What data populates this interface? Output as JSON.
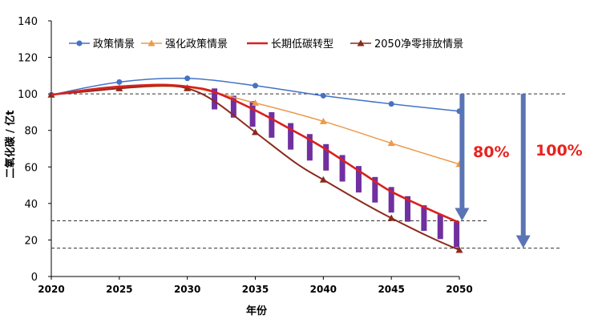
{
  "chart_data": {
    "type": "line",
    "xlabel": "年份",
    "ylabel": "二氧化碳 / 亿t",
    "xlim": [
      2020,
      2050
    ],
    "ylim": [
      0,
      140
    ],
    "x_ticks": [
      2020,
      2025,
      2030,
      2035,
      2040,
      2045,
      2050
    ],
    "y_ticks": [
      0,
      20,
      40,
      60,
      80,
      100,
      120,
      140
    ],
    "grid": false,
    "legend_position": "top",
    "series": [
      {
        "name": "政策情景",
        "color": "#4472C4",
        "marker": "circle",
        "x": [
          2020,
          2025,
          2030,
          2035,
          2040,
          2045,
          2050
        ],
        "y": [
          99.5,
          106.5,
          108.5,
          104.5,
          99,
          94.5,
          90.5
        ]
      },
      {
        "name": "强化政策情景",
        "color": "#ED9A4B",
        "marker": "triangle",
        "x": [
          2020,
          2025,
          2030,
          2035,
          2040,
          2045,
          2050
        ],
        "y": [
          99.5,
          103,
          103.5,
          95,
          85,
          73,
          61.5
        ]
      },
      {
        "name": "长期低碳转型",
        "color": "#D9201F",
        "marker": "none",
        "x": [
          2020,
          2023,
          2025,
          2028,
          2030,
          2032,
          2035,
          2038,
          2040,
          2043,
          2045,
          2048,
          2050
        ],
        "y": [
          99.5,
          102.5,
          104,
          105,
          104,
          101,
          91,
          79,
          70.5,
          56,
          46.5,
          36,
          29.5
        ]
      },
      {
        "name": "2050净零排放情景",
        "color": "#8B2A1D",
        "marker": "triangle",
        "x": [
          2020,
          2025,
          2028,
          2030,
          2032,
          2035,
          2038,
          2040,
          2043,
          2045,
          2048,
          2050
        ],
        "y": [
          99.5,
          103,
          104.5,
          103,
          96,
          79,
          62,
          53,
          40,
          32,
          21,
          14.5
        ]
      }
    ],
    "reference_lines": [
      100,
      30.5,
      15.5
    ],
    "hatch_bars": {
      "color": "#7030A0",
      "x": [
        2032,
        2033.4,
        2034.8,
        2036.2,
        2037.6,
        2039,
        2040.2,
        2041.4,
        2042.6,
        2043.8,
        2045,
        2046.2,
        2047.4,
        2048.6,
        2049.8
      ],
      "low": [
        91.5,
        87,
        82,
        76,
        69.5,
        63.5,
        58,
        52,
        46,
        40.5,
        35,
        30,
        25,
        20.5,
        16
      ],
      "high": [
        103,
        99,
        96,
        90,
        84,
        78,
        72.5,
        66.5,
        60.5,
        54.5,
        49,
        44,
        39,
        34,
        30
      ]
    },
    "annotations": [
      {
        "text": "80%",
        "color": "#E8231F",
        "arrow_x": 2050.2,
        "from": 100,
        "to": 30.5
      },
      {
        "text": "100%",
        "color": "#E8231F",
        "arrow_x": 2054.7,
        "from": 100,
        "to": 15.5
      }
    ]
  }
}
